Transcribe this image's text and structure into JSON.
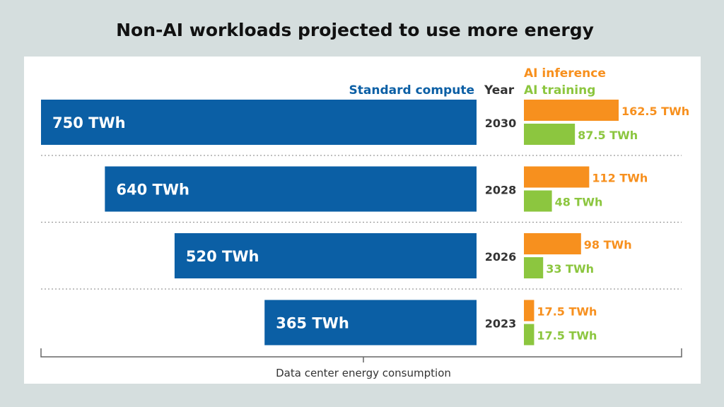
{
  "colors": {
    "background": "#d5dede",
    "panel": "#ffffff",
    "standard": "#0b5fa5",
    "inference": "#f7901e",
    "training": "#8cc63f",
    "text": "#333333",
    "divider": "#9a9a9a"
  },
  "chart_data": {
    "type": "bar",
    "title": "Non-AI workloads projected to use more energy",
    "xlabel": "Data center energy consumption",
    "unit": "TWh",
    "year_header": "Year",
    "categories": [
      "2030",
      "2028",
      "2026",
      "2023"
    ],
    "series": [
      {
        "name": "Standard compute",
        "values": [
          750,
          640,
          520,
          365
        ],
        "labels": [
          "750 TWh",
          "640 TWh",
          "520 TWh",
          "365 TWh"
        ]
      },
      {
        "name": "AI inference",
        "values": [
          162.5,
          112,
          98,
          17.5
        ],
        "labels": [
          "162.5 TWh",
          "112 TWh",
          "98 TWh",
          "17.5 TWh"
        ]
      },
      {
        "name": "AI training",
        "values": [
          87.5,
          48,
          33,
          17.5
        ],
        "labels": [
          "87.5 TWh",
          "48 TWh",
          "33 TWh",
          "17.5 TWh"
        ]
      }
    ],
    "grid": false
  }
}
